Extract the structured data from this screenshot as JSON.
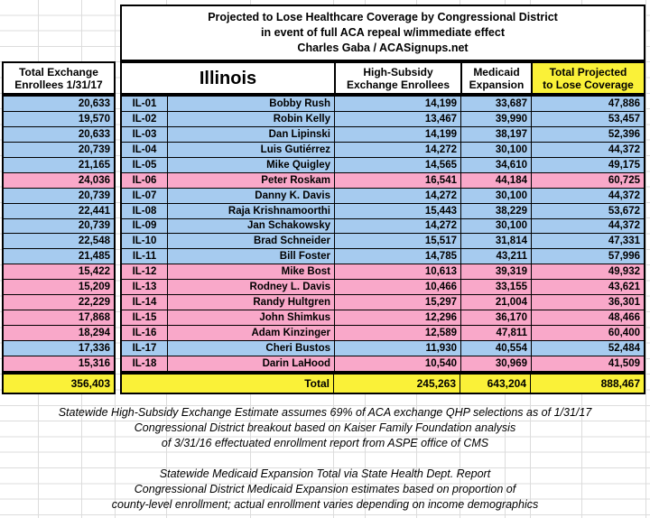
{
  "title": {
    "line1": "Projected to Lose Healthcare Coverage by Congressional District",
    "line2": "in event of full ACA repeal w/immediate effect",
    "line3": "Charles Gaba / ACASignups.net"
  },
  "headers": {
    "left_line1": "Total Exchange",
    "left_line2": "Enrollees 1/31/17",
    "state": "Illinois",
    "high_subsidy_line1": "High-Subsidy",
    "high_subsidy_line2": "Exchange Enrollees",
    "medicaid_line1": "Medicaid",
    "medicaid_line2": "Expansion",
    "total_projected_line1": "Total Projected",
    "total_projected_line2": "to Lose Coverage"
  },
  "colors": {
    "blue": "#A6CBEF",
    "pink": "#F9A8C9",
    "yellow": "#FAF138",
    "grid": "#DCDCDC",
    "border": "#000000"
  },
  "rows": [
    {
      "district": "IL-01",
      "name": "Bobby Rush",
      "exchange": "20,633",
      "high_subsidy": "14,199",
      "medicaid": "33,687",
      "total": "47,886",
      "party": "blue"
    },
    {
      "district": "IL-02",
      "name": "Robin Kelly",
      "exchange": "19,570",
      "high_subsidy": "13,467",
      "medicaid": "39,990",
      "total": "53,457",
      "party": "blue"
    },
    {
      "district": "IL-03",
      "name": "Dan Lipinski",
      "exchange": "20,633",
      "high_subsidy": "14,199",
      "medicaid": "38,197",
      "total": "52,396",
      "party": "blue"
    },
    {
      "district": "IL-04",
      "name": "Luis Gutiérrez",
      "exchange": "20,739",
      "high_subsidy": "14,272",
      "medicaid": "30,100",
      "total": "44,372",
      "party": "blue"
    },
    {
      "district": "IL-05",
      "name": "Mike Quigley",
      "exchange": "21,165",
      "high_subsidy": "14,565",
      "medicaid": "34,610",
      "total": "49,175",
      "party": "blue"
    },
    {
      "district": "IL-06",
      "name": "Peter Roskam",
      "exchange": "24,036",
      "high_subsidy": "16,541",
      "medicaid": "44,184",
      "total": "60,725",
      "party": "pink"
    },
    {
      "district": "IL-07",
      "name": "Danny K. Davis",
      "exchange": "20,739",
      "high_subsidy": "14,272",
      "medicaid": "30,100",
      "total": "44,372",
      "party": "blue"
    },
    {
      "district": "IL-08",
      "name": "Raja Krishnamoorthi",
      "exchange": "22,441",
      "high_subsidy": "15,443",
      "medicaid": "38,229",
      "total": "53,672",
      "party": "blue"
    },
    {
      "district": "IL-09",
      "name": "Jan Schakowsky",
      "exchange": "20,739",
      "high_subsidy": "14,272",
      "medicaid": "30,100",
      "total": "44,372",
      "party": "blue"
    },
    {
      "district": "IL-10",
      "name": "Brad Schneider",
      "exchange": "22,548",
      "high_subsidy": "15,517",
      "medicaid": "31,814",
      "total": "47,331",
      "party": "blue"
    },
    {
      "district": "IL-11",
      "name": "Bill Foster",
      "exchange": "21,485",
      "high_subsidy": "14,785",
      "medicaid": "43,211",
      "total": "57,996",
      "party": "blue"
    },
    {
      "district": "IL-12",
      "name": "Mike Bost",
      "exchange": "15,422",
      "high_subsidy": "10,613",
      "medicaid": "39,319",
      "total": "49,932",
      "party": "pink"
    },
    {
      "district": "IL-13",
      "name": "Rodney L. Davis",
      "exchange": "15,209",
      "high_subsidy": "10,466",
      "medicaid": "33,155",
      "total": "43,621",
      "party": "pink"
    },
    {
      "district": "IL-14",
      "name": "Randy Hultgren",
      "exchange": "22,229",
      "high_subsidy": "15,297",
      "medicaid": "21,004",
      "total": "36,301",
      "party": "pink"
    },
    {
      "district": "IL-15",
      "name": "John Shimkus",
      "exchange": "17,868",
      "high_subsidy": "12,296",
      "medicaid": "36,170",
      "total": "48,466",
      "party": "pink"
    },
    {
      "district": "IL-16",
      "name": "Adam Kinzinger",
      "exchange": "18,294",
      "high_subsidy": "12,589",
      "medicaid": "47,811",
      "total": "60,400",
      "party": "pink"
    },
    {
      "district": "IL-17",
      "name": "Cheri Bustos",
      "exchange": "17,336",
      "high_subsidy": "11,930",
      "medicaid": "40,554",
      "total": "52,484",
      "party": "blue"
    },
    {
      "district": "IL-18",
      "name": "Darin LaHood",
      "exchange": "15,316",
      "high_subsidy": "10,540",
      "medicaid": "30,969",
      "total": "41,509",
      "party": "pink"
    }
  ],
  "total_row": {
    "label": "Total",
    "exchange": "356,403",
    "high_subsidy": "245,263",
    "medicaid": "643,204",
    "total": "888,467"
  },
  "footnotes": {
    "block1": [
      "Statewide High-Subsidy Exchange Estimate assumes 69% of ACA exchange QHP selections as of 1/31/17",
      "Congressional District breakout based on Kaiser Family Foundation analysis",
      "of 3/31/16 effectuated enrollment report from ASPE office of CMS"
    ],
    "block2": [
      "Statewide Medicaid Expansion Total via State Health Dept. Report",
      "Congressional District Medicaid Expansion estimates based on proportion of",
      "county-level enrollment; actual enrollment varies depending on income demographics"
    ]
  },
  "chart_data": {
    "type": "table",
    "title": "Projected to Lose Healthcare Coverage by Congressional District in event of full ACA repeal w/immediate effect",
    "source": "Charles Gaba / ACASignups.net",
    "state": "Illinois",
    "columns": [
      "Total Exchange Enrollees 1/31/17",
      "District",
      "Representative",
      "High-Subsidy Exchange Enrollees",
      "Medicaid Expansion",
      "Total Projected to Lose Coverage"
    ],
    "rows": [
      [
        20633,
        "IL-01",
        "Bobby Rush",
        14199,
        33687,
        47886
      ],
      [
        19570,
        "IL-02",
        "Robin Kelly",
        13467,
        39990,
        53457
      ],
      [
        20633,
        "IL-03",
        "Dan Lipinski",
        14199,
        38197,
        52396
      ],
      [
        20739,
        "IL-04",
        "Luis Gutiérrez",
        14272,
        30100,
        44372
      ],
      [
        21165,
        "IL-05",
        "Mike Quigley",
        14565,
        34610,
        49175
      ],
      [
        24036,
        "IL-06",
        "Peter Roskam",
        16541,
        44184,
        60725
      ],
      [
        20739,
        "IL-07",
        "Danny K. Davis",
        14272,
        30100,
        44372
      ],
      [
        22441,
        "IL-08",
        "Raja Krishnamoorthi",
        15443,
        38229,
        53672
      ],
      [
        20739,
        "IL-09",
        "Jan Schakowsky",
        14272,
        30100,
        44372
      ],
      [
        22548,
        "IL-10",
        "Brad Schneider",
        15517,
        31814,
        47331
      ],
      [
        21485,
        "IL-11",
        "Bill Foster",
        14785,
        43211,
        57996
      ],
      [
        15422,
        "IL-12",
        "Mike Bost",
        10613,
        39319,
        49932
      ],
      [
        15209,
        "IL-13",
        "Rodney L. Davis",
        10466,
        33155,
        43621
      ],
      [
        22229,
        "IL-14",
        "Randy Hultgren",
        15297,
        21004,
        36301
      ],
      [
        17868,
        "IL-15",
        "John Shimkus",
        12296,
        36170,
        48466
      ],
      [
        18294,
        "IL-16",
        "Adam Kinzinger",
        12589,
        47811,
        60400
      ],
      [
        17336,
        "IL-17",
        "Cheri Bustos",
        11930,
        40554,
        52484
      ],
      [
        15316,
        "IL-18",
        "Darin LaHood",
        10540,
        30969,
        41509
      ]
    ],
    "totals": {
      "exchange": 356403,
      "high_subsidy": 245263,
      "medicaid": 643204,
      "total_projected": 888467
    }
  }
}
